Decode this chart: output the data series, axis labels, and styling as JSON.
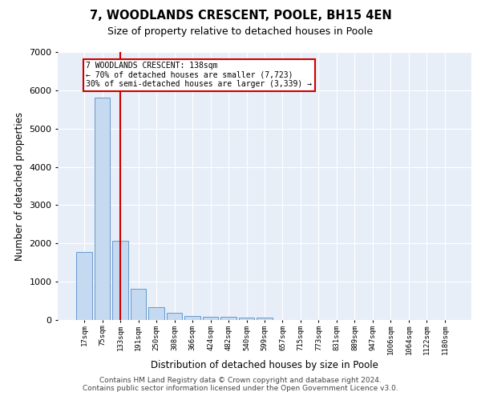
{
  "title": "7, WOODLANDS CRESCENT, POOLE, BH15 4EN",
  "subtitle": "Size of property relative to detached houses in Poole",
  "xlabel": "Distribution of detached houses by size in Poole",
  "ylabel": "Number of detached properties",
  "bar_color": "#c5d9f0",
  "bar_edge_color": "#6699cc",
  "background_color": "#e8eef8",
  "grid_color": "#ffffff",
  "categories": [
    "17sqm",
    "75sqm",
    "133sqm",
    "191sqm",
    "250sqm",
    "308sqm",
    "366sqm",
    "424sqm",
    "482sqm",
    "540sqm",
    "599sqm",
    "657sqm",
    "715sqm",
    "773sqm",
    "831sqm",
    "889sqm",
    "947sqm",
    "1006sqm",
    "1064sqm",
    "1122sqm",
    "1180sqm"
  ],
  "values": [
    1780,
    5800,
    2060,
    810,
    340,
    190,
    110,
    90,
    90,
    65,
    55,
    0,
    0,
    0,
    0,
    0,
    0,
    0,
    0,
    0,
    0
  ],
  "property_index": 2,
  "property_label": "7 WOODLANDS CRESCENT: 138sqm",
  "annotation_line1": "← 70% of detached houses are smaller (7,723)",
  "annotation_line2": "30% of semi-detached houses are larger (3,339) →",
  "vline_color": "#cc0000",
  "annotation_box_color": "#cc0000",
  "ylim": [
    0,
    7000
  ],
  "yticks": [
    0,
    1000,
    2000,
    3000,
    4000,
    5000,
    6000,
    7000
  ],
  "footer_line1": "Contains HM Land Registry data © Crown copyright and database right 2024.",
  "footer_line2": "Contains public sector information licensed under the Open Government Licence v3.0."
}
